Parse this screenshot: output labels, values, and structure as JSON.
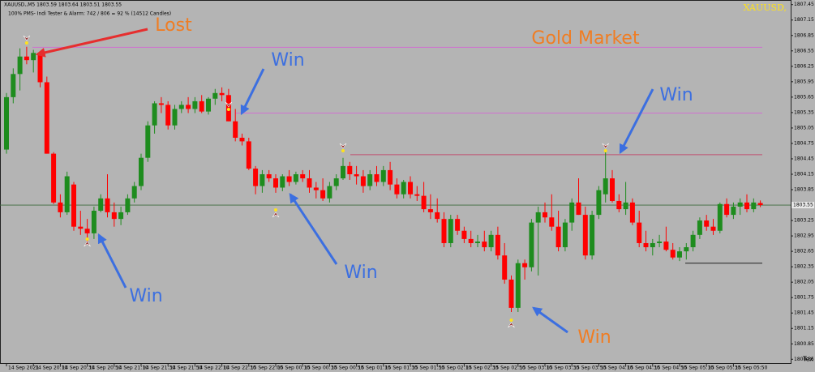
{
  "chart_data": {
    "type": "candlestick",
    "header": "XAUUSD,,M5  1803.59 1803.64 1803.51 1803.55",
    "subheader": "100% PMS- Indi Tester & Alarm: 742 / 806 = 92 % (14512 Candles)",
    "symbol_tag": "XAUUSD,",
    "corner_text": "Tex",
    "title": "Gold Market",
    "up_color": "#1e8c1e",
    "down_color": "#ff0000",
    "ylim": [
      1800.46,
      1807.54
    ],
    "yticks": [
      1800.55,
      1800.85,
      1801.15,
      1801.45,
      1801.75,
      1802.05,
      1802.35,
      1802.65,
      1802.95,
      1803.25,
      1803.55,
      1803.85,
      1804.15,
      1804.45,
      1804.75,
      1805.05,
      1805.35,
      1805.65,
      1805.95,
      1806.25,
      1806.55,
      1806.85,
      1807.15,
      1807.45
    ],
    "current_price": 1803.55,
    "levels": [
      {
        "value": 1806.62,
        "color": "#d070d0"
      },
      {
        "value": 1805.34,
        "color": "#d070d0"
      },
      {
        "value": 1804.53,
        "color": "#c05070"
      },
      {
        "value": 1802.42,
        "color": "#202020"
      }
    ],
    "annotations": [
      {
        "text": "Lost",
        "color": "#f07d23"
      },
      {
        "text": "Win",
        "color": "#3c6fe0"
      },
      {
        "text": "Win",
        "color": "#3c6fe0"
      },
      {
        "text": "Win",
        "color": "#3c6fe0"
      },
      {
        "text": "Win",
        "color": "#3c6fe0"
      },
      {
        "text": "Win",
        "color": "#f07d23"
      }
    ],
    "categories": [
      "14 Sep 2021",
      null,
      null,
      null,
      "14 Sep 20:10",
      null,
      null,
      null,
      "14 Sep 20:30",
      null,
      null,
      null,
      "14 Sep 20:50",
      null,
      null,
      null,
      "14 Sep 21:10",
      null,
      null,
      null,
      "14 Sep 21:30",
      null,
      null,
      null,
      "14 Sep 21:50",
      null,
      null,
      null,
      "14 Sep 22:10",
      null,
      null,
      null,
      "14 Sep 22:30",
      null,
      null,
      null,
      "15 Sep 22:00",
      null,
      null,
      null,
      "15 Sep 00:10",
      null,
      null,
      null,
      "15 Sep 00:30",
      null,
      null,
      null,
      "15 Sep 00:50",
      null,
      null,
      null,
      "15 Sep 01:10",
      null,
      null,
      null,
      "15 Sep 01:30",
      null,
      null,
      null,
      "15 Sep 01:50",
      null,
      null,
      null,
      "15 Sep 02:10",
      null,
      null,
      null,
      "15 Sep 02:30",
      null,
      null,
      null,
      "15 Sep 02:50",
      null,
      null,
      null,
      "15 Sep 03:10",
      null,
      null,
      null,
      "15 Sep 03:30",
      null,
      null,
      null,
      "15 Sep 03:50",
      null,
      null,
      null,
      "15 Sep 04:10",
      null,
      null,
      null,
      "15 Sep 04:30",
      null,
      null,
      null,
      "15 Sep 04:50",
      null,
      null,
      null,
      "15 Sep 05:10",
      null,
      null,
      null,
      "15 Sep 05:30",
      null,
      null,
      null,
      "15 Sep 05:50",
      null,
      null,
      null,
      null
    ],
    "open": [
      1804.63,
      1805.65,
      1806.1,
      1806.44,
      1806.37,
      1806.51,
      1805.94,
      1804.55,
      1803.6,
      1803.41,
      1803.95,
      1803.13,
      1803.09,
      1803.0,
      1803.44,
      1803.68,
      1803.41,
      1803.28,
      1803.41,
      1803.68,
      1803.92,
      1804.47,
      1805.1,
      1805.53,
      1805.5,
      1805.1,
      1805.42,
      1805.5,
      1805.42,
      1805.57,
      1805.37,
      1805.62,
      1805.73,
      1805.69,
      1805.18,
      1804.86,
      1804.79,
      1804.26,
      1803.92,
      1804.15,
      1804.07,
      1803.89,
      1804.11,
      1804.0,
      1804.15,
      1804.07,
      1803.89,
      1803.84,
      1803.68,
      1803.92,
      1804.07,
      1804.31,
      1804.15,
      1804.11,
      1803.92,
      1804.15,
      1804.0,
      1804.23,
      1803.95,
      1803.76,
      1804.0,
      1803.76,
      1803.73,
      1803.47,
      1803.41,
      1803.28,
      1802.81,
      1803.28,
      1803.05,
      1802.89,
      1802.81,
      1802.84,
      1802.73,
      1802.97,
      1802.57,
      1802.1,
      1801.55,
      1802.42,
      1802.34,
      1803.21,
      1803.41,
      1803.31,
      1803.13,
      1802.73,
      1803.21,
      1803.6,
      1803.36,
      1802.57,
      1803.36,
      1803.76,
      1804.07,
      1803.63,
      1803.47,
      1803.6,
      1803.21,
      1802.81,
      1802.73,
      1802.81,
      1802.84,
      1802.68,
      1802.53,
      1802.65,
      1802.73,
      1802.97,
      1803.25,
      1803.13,
      1803.05,
      1803.57,
      1803.36,
      1803.52,
      1803.6,
      1803.47,
      1803.59
    ],
    "high": [
      1805.73,
      1806.21,
      1806.6,
      1806.63,
      1806.57,
      1806.54,
      1806.05,
      1804.58,
      1803.76,
      1804.2,
      1804.0,
      1803.44,
      1803.28,
      1803.52,
      1803.76,
      1804.15,
      1803.6,
      1803.52,
      1803.76,
      1804.0,
      1804.55,
      1805.18,
      1805.57,
      1805.65,
      1805.57,
      1805.5,
      1805.57,
      1805.65,
      1805.65,
      1805.69,
      1805.65,
      1805.81,
      1805.84,
      1805.81,
      1805.42,
      1804.94,
      1804.86,
      1804.31,
      1804.23,
      1804.23,
      1804.15,
      1804.15,
      1804.23,
      1804.2,
      1804.23,
      1804.23,
      1804.0,
      1804.07,
      1804.0,
      1804.15,
      1804.47,
      1804.39,
      1804.31,
      1804.23,
      1804.23,
      1804.31,
      1804.31,
      1804.39,
      1804.07,
      1804.04,
      1804.11,
      1803.92,
      1804.0,
      1803.76,
      1803.68,
      1803.41,
      1803.36,
      1803.36,
      1803.13,
      1803.05,
      1802.97,
      1803.05,
      1803.05,
      1803.13,
      1802.81,
      1802.18,
      1802.49,
      1802.49,
      1803.28,
      1803.52,
      1803.6,
      1803.76,
      1803.44,
      1803.28,
      1803.68,
      1804.07,
      1803.52,
      1803.44,
      1803.92,
      1804.63,
      1804.23,
      1803.76,
      1804.0,
      1803.68,
      1803.44,
      1803.05,
      1802.89,
      1802.97,
      1803.13,
      1802.81,
      1802.73,
      1802.81,
      1803.05,
      1803.31,
      1803.36,
      1803.28,
      1803.6,
      1803.68,
      1803.6,
      1803.68,
      1803.76,
      1803.68,
      1803.64
    ],
    "low": [
      1804.55,
      1805.53,
      1805.78,
      1806.29,
      1806.13,
      1805.84,
      1804.55,
      1803.57,
      1803.31,
      1803.36,
      1803.05,
      1802.97,
      1802.81,
      1802.89,
      1803.41,
      1803.31,
      1803.13,
      1803.16,
      1803.36,
      1803.6,
      1803.84,
      1804.39,
      1804.94,
      1805.34,
      1805.02,
      1805.02,
      1805.34,
      1805.34,
      1805.34,
      1805.34,
      1805.31,
      1805.5,
      1805.57,
      1805.18,
      1804.79,
      1804.71,
      1804.23,
      1803.76,
      1803.79,
      1804.0,
      1803.79,
      1803.82,
      1803.92,
      1803.95,
      1804.0,
      1803.79,
      1803.68,
      1803.63,
      1803.6,
      1803.84,
      1804.04,
      1804.04,
      1803.95,
      1803.79,
      1803.84,
      1803.92,
      1803.92,
      1803.84,
      1803.68,
      1803.68,
      1803.68,
      1803.63,
      1803.41,
      1803.28,
      1803.21,
      1802.73,
      1802.73,
      1802.97,
      1802.81,
      1802.73,
      1802.73,
      1802.65,
      1802.65,
      1802.49,
      1802.02,
      1801.47,
      1801.47,
      1802.1,
      1802.26,
      1802.18,
      1803.21,
      1803.05,
      1802.65,
      1802.65,
      1803.05,
      1803.36,
      1802.49,
      1802.49,
      1803.28,
      1803.6,
      1803.6,
      1803.41,
      1803.36,
      1803.16,
      1802.73,
      1802.65,
      1802.57,
      1802.73,
      1802.65,
      1802.49,
      1802.46,
      1802.49,
      1802.65,
      1802.89,
      1803.05,
      1802.97,
      1803.0,
      1803.31,
      1803.28,
      1803.36,
      1803.41,
      1803.41,
      1803.51
    ],
    "close": [
      1805.65,
      1806.1,
      1806.44,
      1806.37,
      1806.51,
      1805.94,
      1804.55,
      1803.6,
      1803.41,
      1804.11,
      1803.13,
      1803.09,
      1803.0,
      1803.44,
      1803.68,
      1803.41,
      1803.28,
      1803.41,
      1803.68,
      1803.92,
      1804.47,
      1805.1,
      1805.53,
      1805.5,
      1805.1,
      1805.42,
      1805.5,
      1805.42,
      1805.57,
      1805.37,
      1805.62,
      1805.73,
      1805.69,
      1805.18,
      1804.86,
      1804.79,
      1804.26,
      1803.92,
      1804.15,
      1804.07,
      1803.89,
      1804.11,
      1804.0,
      1804.15,
      1804.07,
      1803.89,
      1803.84,
      1803.68,
      1803.92,
      1804.07,
      1804.31,
      1804.15,
      1804.11,
      1803.92,
      1804.15,
      1804.0,
      1804.23,
      1803.95,
      1803.76,
      1804.0,
      1803.76,
      1803.73,
      1803.47,
      1803.41,
      1803.28,
      1802.81,
      1803.28,
      1803.05,
      1802.89,
      1802.81,
      1802.84,
      1802.73,
      1802.97,
      1802.57,
      1802.1,
      1801.55,
      1802.42,
      1802.34,
      1803.21,
      1803.41,
      1803.31,
      1803.13,
      1802.73,
      1803.21,
      1803.6,
      1803.36,
      1802.57,
      1803.36,
      1803.84,
      1804.07,
      1803.63,
      1803.47,
      1803.6,
      1803.21,
      1802.81,
      1802.73,
      1802.81,
      1802.84,
      1802.68,
      1802.53,
      1802.65,
      1802.73,
      1802.97,
      1803.25,
      1803.13,
      1803.05,
      1803.57,
      1803.36,
      1803.52,
      1803.6,
      1803.47,
      1803.6,
      1803.55
    ]
  }
}
